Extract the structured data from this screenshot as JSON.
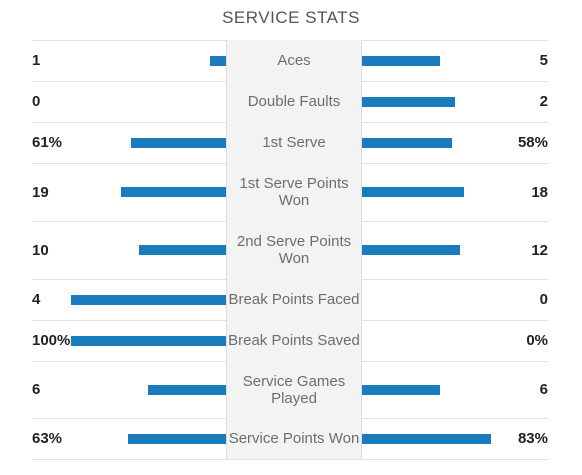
{
  "title": "SERVICE STATS",
  "colors": {
    "bar": "#1a7bbf"
  },
  "rows": [
    {
      "label": "Aces",
      "left": "1",
      "right": "5",
      "left_bar": 0.1,
      "right_bar": 0.5
    },
    {
      "label": "Double Faults",
      "left": "0",
      "right": "2",
      "left_bar": 0.0,
      "right_bar": 0.6
    },
    {
      "label": "1st Serve",
      "left": "61%",
      "right": "58%",
      "left_bar": 0.61,
      "right_bar": 0.58
    },
    {
      "label": "1st Serve Points Won",
      "left": "19",
      "right": "18",
      "left_bar": 0.68,
      "right_bar": 0.66
    },
    {
      "label": "2nd Serve Points Won",
      "left": "10",
      "right": "12",
      "left_bar": 0.56,
      "right_bar": 0.63
    },
    {
      "label": "Break Points Faced",
      "left": "4",
      "right": "0",
      "left_bar": 1.0,
      "right_bar": 0.0
    },
    {
      "label": "Break Points Saved",
      "left": "100%",
      "right": "0%",
      "left_bar": 1.0,
      "right_bar": 0.0
    },
    {
      "label": "Service Games Played",
      "left": "6",
      "right": "6",
      "left_bar": 0.5,
      "right_bar": 0.5
    },
    {
      "label": "Service Points Won",
      "left": "63%",
      "right": "83%",
      "left_bar": 0.63,
      "right_bar": 0.83
    }
  ]
}
